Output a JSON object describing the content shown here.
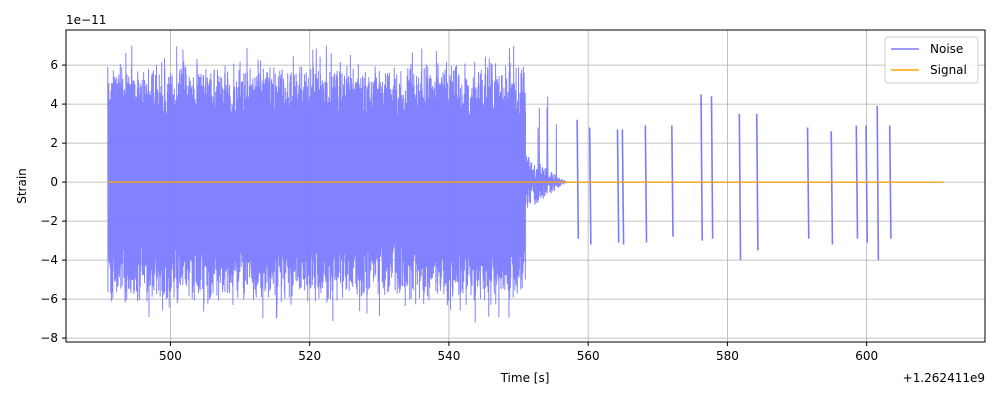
{
  "chart_data": {
    "type": "line",
    "xlabel": "Time [s]",
    "ylabel": "Strain",
    "x_offset_label": "+1.262411e9",
    "y_scale_label": "1e−11",
    "xlim": [
      485,
      617
    ],
    "ylim": [
      -8.2,
      7.8
    ],
    "x_ticks": [
      500,
      520,
      540,
      560,
      580,
      600
    ],
    "y_ticks": [
      -8,
      -6,
      -4,
      -2,
      0,
      2,
      4,
      6
    ],
    "x_tick_labels": [
      "500",
      "520",
      "540",
      "560",
      "580",
      "600"
    ],
    "y_tick_labels": [
      "−8",
      "−6",
      "−4",
      "−2",
      "0",
      "2",
      "4",
      "6"
    ],
    "grid": true,
    "legend_position": "top-right",
    "series": [
      {
        "name": "Noise",
        "color": "#7b7bff",
        "dense_segment": {
          "x_start": 491,
          "x_end": 551,
          "y_min": -7.3,
          "y_max": 7.0
        },
        "taper_segment": {
          "x_start": 551,
          "x_end": 557,
          "y_min": -4.5,
          "y_max": 4.5
        },
        "glitches": [
          {
            "x": 558.5,
            "ymin": -2.9,
            "ymax": 3.2
          },
          {
            "x": 560.3,
            "ymin": -3.2,
            "ymax": 2.8
          },
          {
            "x": 564.3,
            "ymin": -3.1,
            "ymax": 2.7
          },
          {
            "x": 565.0,
            "ymin": -3.2,
            "ymax": 2.7
          },
          {
            "x": 568.3,
            "ymin": -3.1,
            "ymax": 2.9
          },
          {
            "x": 572.1,
            "ymin": -2.8,
            "ymax": 2.9
          },
          {
            "x": 576.3,
            "ymin": -3.0,
            "ymax": 4.5
          },
          {
            "x": 577.8,
            "ymin": -2.9,
            "ymax": 4.4
          },
          {
            "x": 581.8,
            "ymin": -4.0,
            "ymax": 3.5
          },
          {
            "x": 584.3,
            "ymin": -3.5,
            "ymax": 3.5
          },
          {
            "x": 591.6,
            "ymin": -2.9,
            "ymax": 2.8
          },
          {
            "x": 595.0,
            "ymin": -3.2,
            "ymax": 2.6
          },
          {
            "x": 598.6,
            "ymin": -2.9,
            "ymax": 2.9
          },
          {
            "x": 600.0,
            "ymin": -3.1,
            "ymax": 2.9
          },
          {
            "x": 601.6,
            "ymin": -4.0,
            "ymax": 3.9
          },
          {
            "x": 603.4,
            "ymin": -2.9,
            "ymax": 2.9
          }
        ]
      },
      {
        "name": "Signal",
        "color": "#ffa500",
        "x": [
          491,
          611
        ],
        "y": [
          0,
          0
        ]
      }
    ]
  }
}
